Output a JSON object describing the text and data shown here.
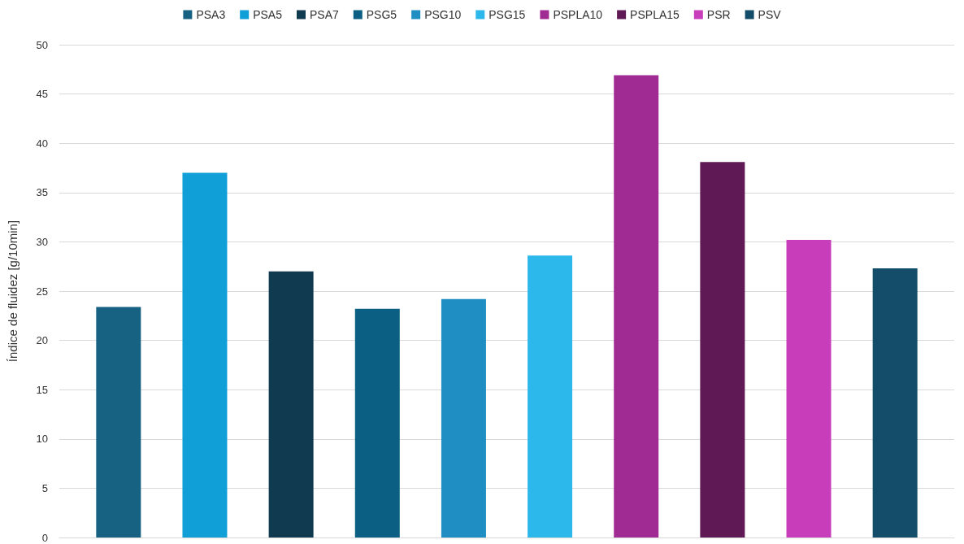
{
  "chart_data": {
    "type": "bar",
    "ylabel": "Índice de fluidez [g/10min]",
    "categories": [
      null
    ],
    "series": [
      {
        "name": "PSA3",
        "color": "#176183",
        "values": [
          23.4
        ]
      },
      {
        "name": "PSA5",
        "color": "#109fd6",
        "values": [
          37.0
        ]
      },
      {
        "name": "PSA7",
        "color": "#103a50",
        "values": [
          27.0
        ]
      },
      {
        "name": "PSG5",
        "color": "#0b5f82",
        "values": [
          23.2
        ]
      },
      {
        "name": "PSG10",
        "color": "#1f8ec2",
        "values": [
          24.2
        ]
      },
      {
        "name": "PSG15",
        "color": "#2db8ec",
        "values": [
          28.6
        ]
      },
      {
        "name": "PSPLA10",
        "color": "#a02b93",
        "values": [
          46.9
        ]
      },
      {
        "name": "PSPLA15",
        "color": "#5f1a56",
        "values": [
          38.1
        ]
      },
      {
        "name": "PSR",
        "color": "#c83dba",
        "values": [
          30.2
        ]
      },
      {
        "name": "PSV",
        "color": "#144d69",
        "values": [
          27.3
        ]
      }
    ],
    "ylim": [
      0,
      50
    ],
    "yticks": [
      0,
      5,
      10,
      15,
      20,
      25,
      30,
      35,
      40,
      45,
      50
    ],
    "grid": "y",
    "legend": "top"
  }
}
